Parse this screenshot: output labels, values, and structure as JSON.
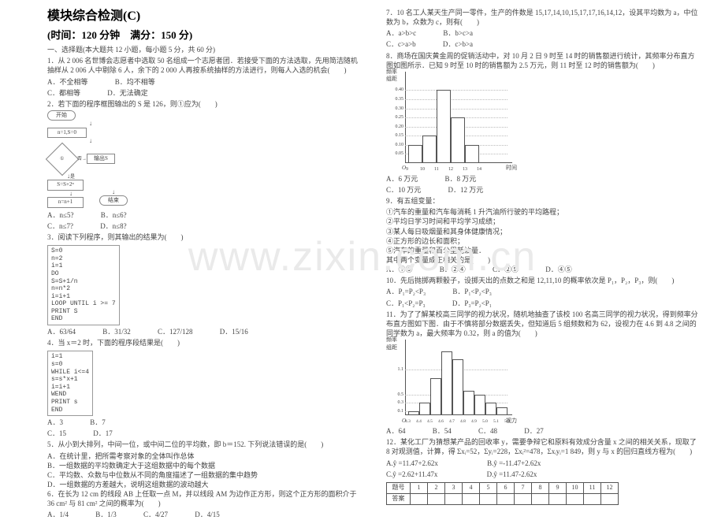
{
  "watermark": "www.zixin.com.cn",
  "title": "模块综合检测(C)",
  "subtitle": "(时间：120 分钟　满分：150 分)",
  "section1": "一、选择题(本大题共 12 小题，每小题 5 分，共 60 分)",
  "left": {
    "q1": "1．从 2 006 名世博会志愿者中选取 50 名组成一个志愿者团．若接受下面的方法选取，先用简洁随机抽样从 2 006 人中剔除 6 人，余下的 2 000 人再按系统抽样的方法进行，则每人入选的机会(　　)",
    "q1a": "A．不全相等",
    "q1b": "B．均不相等",
    "q1c": "C．都相等",
    "q1d": "D．无法确定",
    "q2": "2．若下面的程序框图输出的 S 是 126，则①应为(　　)",
    "fc": {
      "start": "开始",
      "init": "n=1,S=0",
      "cond": "①",
      "body": "S=S+2ⁿ",
      "inc": "n=n+1",
      "out": "输出S",
      "end": "结束",
      "yes": "是",
      "no": "否"
    },
    "q2a": "A．n≤5?",
    "q2b": "B．n≤6?",
    "q2c": "C．n≤7?",
    "q2d": "D．n≤8?",
    "q3": "3．阅读下列程序，则其输出的结果为(　　)",
    "code1": "S=0\nn=2\ni=1\nDO\nS=S+1/n\nn=n*2\ni=i+1\nLOOP UNTIL i >= 7\nPRINT S\nEND",
    "q3a": "A．63/64",
    "q3b": "B．31/32",
    "q3c": "C．127/128",
    "q3d": "D．15/16",
    "q4": "4．当 x＝2 时，下面的程序段结果是(　　)",
    "code2": "i=1\ns=0\nWHILE i<=4\ns=s*x+1\ni=i+1\nWEND\nPRINT s\nEND",
    "q4a": "A．3",
    "q4b": "B．7",
    "q4c": "C．15",
    "q4d": "D．17",
    "q5": "5．从小到大排列，中间一位，或中间二位的平均数，即 b＝152. 下列说法错误的是(　　)",
    "q5a": "A．在统计里，把所需考察对象的全体叫作总体",
    "q5b": "B．一组数据的平均数确定大于这组数据中的每个数据",
    "q5c": "C．平均数、众数与中位数从不同的角度描述了一组数据的集中趋势",
    "q5d": "D．一组数据的方差越大，说明这组数据的波动越大",
    "q6": "6．在长为 12 cm 的线段 AB 上任取一点 M，并以线段 AM 为边作正方形，则这个正方形的面积介于 36 cm² 与 81 cm² 之间的概率为(　　)",
    "q6a": "A．1/4",
    "q6b": "B．1/3",
    "q6c": "C．4/27",
    "q6d": "D．4/15"
  },
  "right": {
    "q7": "7．10 名工人某天生产同一零件，生产的件数是 15,17,14,10,15,17,17,16,14,12，设其平均数为 a，中位数为 b，众数为 c，则有(　　)",
    "q7a": "A．a>b>c",
    "q7b": "B．b>c>a",
    "q7c": "C．c>a>b",
    "q7d": "D．c>b>a",
    "q8": "8．商场在国庆黄金周的促销活动中，对 10 月 2 日 9 时至 14 时的销售额进行统计，其频率分布直方图如图所示．已知 9 时至 10 时的销售额为 2.5 万元，则 11 时至 12 时的销售额为(　　)",
    "hist1": {
      "bg": "#ffffff",
      "border": "#555555",
      "ylabels": [
        "0.40",
        "0.35",
        "0.30",
        "0.25",
        "0.20",
        "0.15",
        "0.10",
        "0.05"
      ],
      "yvals": [
        0.4,
        0.35,
        0.3,
        0.25,
        0.2,
        0.15,
        0.1,
        0.05
      ],
      "ymax": 0.45,
      "xlabels": [
        "9",
        "10",
        "11",
        "12",
        "13",
        "14"
      ],
      "bars": [
        0.1,
        0.15,
        0.4,
        0.25,
        0.1
      ],
      "xtitle": "时间",
      "ytitle": "频率\n组距"
    },
    "q8a": "A．6 万元",
    "q8b": "B．8 万元",
    "q8c": "C．10 万元",
    "q8d": "D．12 万元",
    "q9": "9．有五组变量：",
    "q9_1": "①汽车的重量和汽车每消耗 1 升汽油所行驶的平均路程；",
    "q9_2": "②平均日学习时间和平均学习成绩；",
    "q9_3": "③某人每日吸烟量和其身体健康情况；",
    "q9_4": "④正方形的边长和面积；",
    "q9_5": "⑤汽车的重量和百公里耗油量．",
    "q9_6": "其中两个变量成正相关的是(　　)",
    "q9a": "A．①③",
    "q9b": "B．②④",
    "q9c": "C．②⑤",
    "q9d": "D．④⑤",
    "q10": "10．先后抛掷两颗骰子，设掷天出的点数之和是 12,11,10 的概率依次是 P₁，P₂，P₃，则(　　)",
    "q10a": "A．P₁=P₂<P₃",
    "q10b": "B．P₁<P₂<P₃",
    "q10c": "C．P₁<P₂=P₃",
    "q10d": "D．P₃=P₂<P₁",
    "q11": "11．为了了解某校高三同学的视力状况，随机地抽查了该校 100 名高三同学的视力状况，得到频率分布直方图如下图．由于不慎将部分数据丢失，但知道后 5 组频数和为 62，设视力在 4.6 到 4.8 之间的同学数为 a，最大频率为 0.32，则 a 的值为(　　)",
    "hist2": {
      "bg": "#ffffff",
      "border": "#555555",
      "ylabels": [
        "1.1",
        "0.5",
        "0.3",
        "0.1"
      ],
      "yvals": [
        1.1,
        0.5,
        0.3,
        0.1
      ],
      "ymax": 1.6,
      "xlabels": [
        "4.3",
        "4.4",
        "4.5",
        "4.6",
        "4.7",
        "4.8",
        "4.9",
        "5.0",
        "5.1",
        "5.2"
      ],
      "bars": [
        0.1,
        0.3,
        0.9,
        1.55,
        1.35,
        0.6,
        0.5,
        0.3,
        0.2
      ],
      "xtitle": "视力",
      "ytitle": "频率\n组距"
    },
    "q11a": "A．64",
    "q11b": "B．54",
    "q11c": "C．48",
    "q11d": "D．27",
    "q12": "12．某化工厂为猜想某产品的回收率 y，需要争辩它和原料有效成分含量 x 之间的相关关系，现取了 8 对观测值，计算，得 Σxᵢ=52，Σyᵢ=228，Σxᵢ²=478，Σxᵢyᵢ=1 849，则 y 与 x 的回归直线方程为(　　)",
    "q12a": "A.ŷ =11.47+2.62x",
    "q12b": "B.ŷ =-11.47+2.62x",
    "q12c": "C.ŷ =2.62+11.47x",
    "q12d": "D.ŷ =11.47-2.62x",
    "answer_head": "题号",
    "answer_row2": "答案",
    "nums": [
      "1",
      "2",
      "3",
      "4",
      "5",
      "6",
      "7",
      "8",
      "9",
      "10",
      "11",
      "12"
    ]
  }
}
